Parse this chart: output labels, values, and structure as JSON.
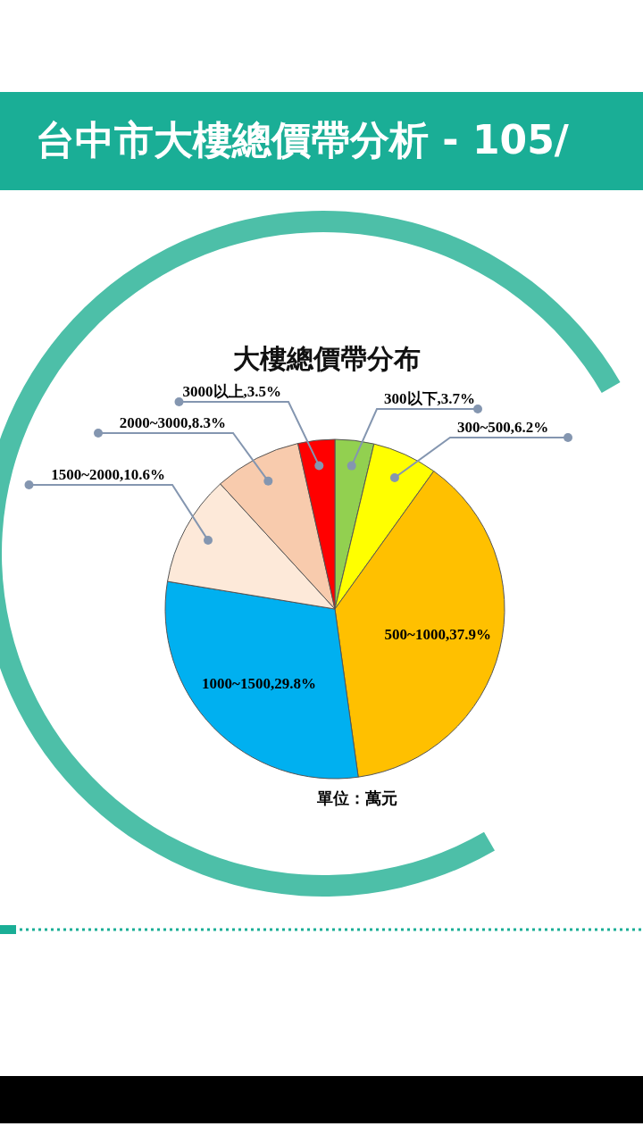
{
  "chart_data": {
    "type": "pie",
    "title": "台中市大樓總價帶分析 - 105/",
    "subtitle": "大樓總價帶分布",
    "categories": [
      "300以下",
      "300~500",
      "500~1000",
      "1000~1500",
      "1500~2000",
      "2000~3000",
      "3000以上"
    ],
    "values": [
      3.7,
      6.2,
      37.9,
      29.8,
      10.6,
      8.3,
      3.5
    ],
    "value_labels": [
      "3.7%",
      "6.2%",
      "37.9%",
      "29.8%",
      "10.6%",
      "8.3%",
      "3.5%"
    ],
    "colors": [
      "#92d050",
      "#ffff00",
      "#ffc000",
      "#00b0f0",
      "#fde9d9",
      "#f8cbad",
      "#ff0000"
    ],
    "annotations": [
      "單位：萬元"
    ]
  }
}
